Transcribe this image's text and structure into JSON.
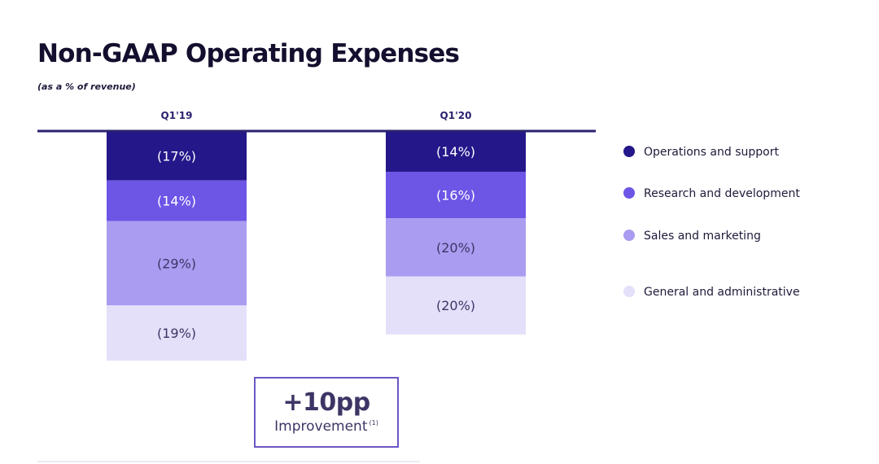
{
  "header": {
    "title": "Non-GAAP Operating Expenses",
    "subtitle": "(as a % of revenue)"
  },
  "callout": {
    "value": "+10pp",
    "label": "Improvement",
    "note": "(1)"
  },
  "colors": {
    "axis_line": "#2a2270",
    "Operations and support": "#24178a",
    "Research and development": "#6d55e6",
    "Sales and marketing": "#aa9cf1",
    "General and administrative": "#e4e0fa",
    "label_light": "#ffffff",
    "label_dark": "#3d3565",
    "box_border": "#6c56c5"
  },
  "chart_data": {
    "type": "bar",
    "stacked": true,
    "orientation": "downward",
    "categories": [
      "Q1'19",
      "Q1'20"
    ],
    "series": [
      {
        "name": "Operations and support",
        "values": [
          17,
          14
        ],
        "labels": [
          "(17%)",
          "(14%)"
        ]
      },
      {
        "name": "Research and development",
        "values": [
          14,
          16
        ],
        "labels": [
          "(14%)",
          "(16%)"
        ]
      },
      {
        "name": "Sales and marketing",
        "values": [
          29,
          20
        ],
        "labels": [
          "(29%)",
          "(20%)"
        ]
      },
      {
        "name": "General and administrative",
        "values": [
          19,
          20
        ],
        "labels": [
          "(19%)",
          "(20%)"
        ]
      }
    ],
    "legend_position": "right"
  }
}
